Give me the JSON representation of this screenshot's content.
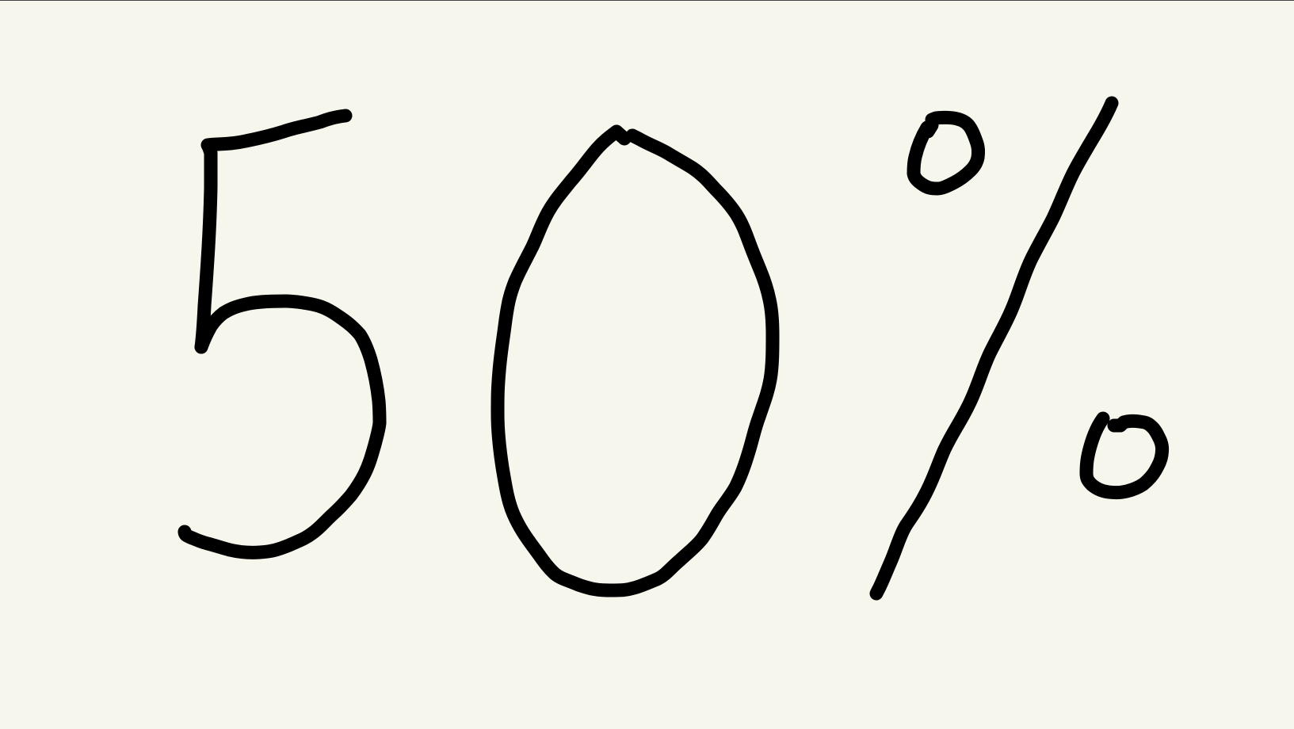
{
  "drawing": {
    "text": "50%",
    "ink_color": "#000000",
    "background_color": "#f6f6ec"
  }
}
